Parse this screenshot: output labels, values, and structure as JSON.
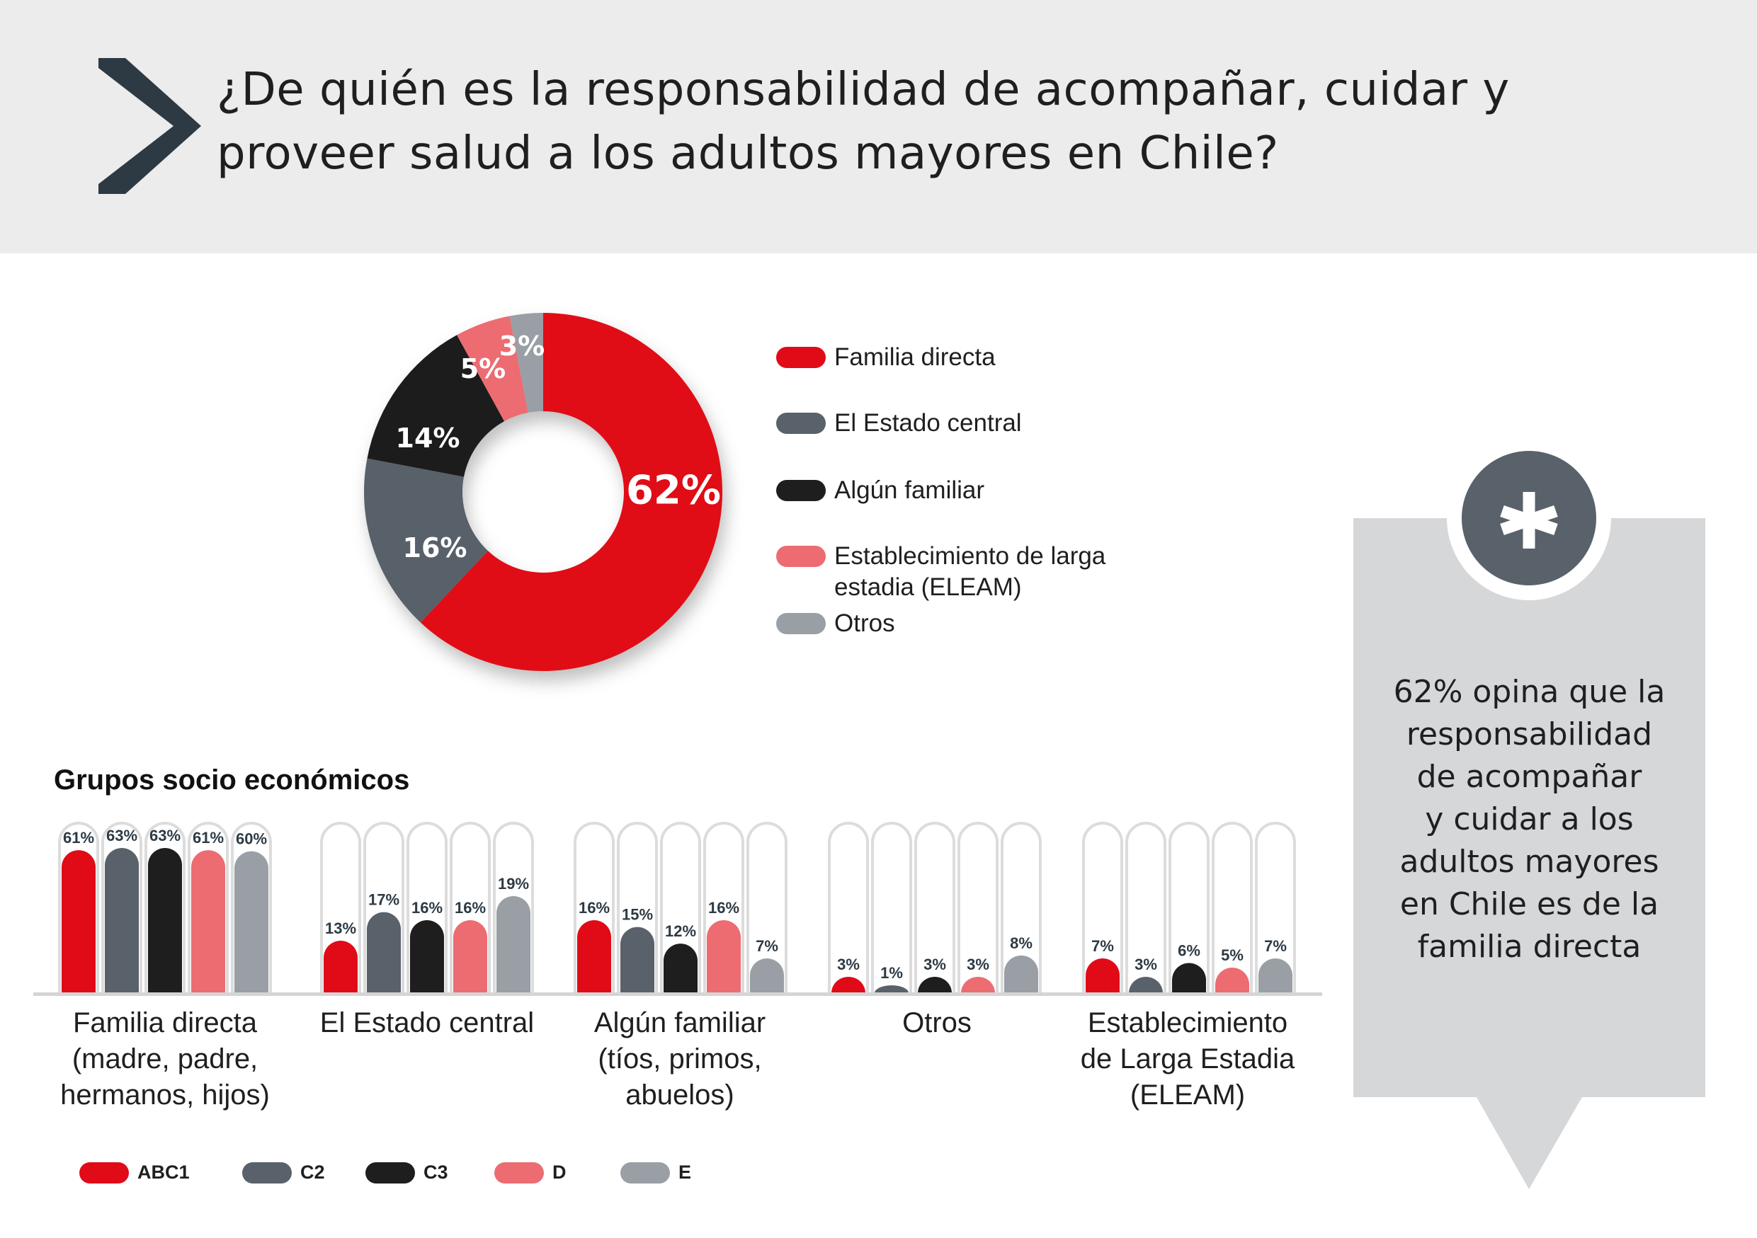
{
  "colors": {
    "ABC1": "#e00b17",
    "C2": "#59616a",
    "C3": "#1e1e1e",
    "D": "#ec6c72",
    "E": "#999fa5",
    "header_bg": "#ececec",
    "accent_dark": "#2d3a44"
  },
  "header": {
    "title_line1": "¿De quién es la responsabilidad de acompañar, cuidar y",
    "title_line2": "proveer salud a los adultos mayores en Chile?",
    "icon": "chevron-right-icon"
  },
  "chart_data": [
    {
      "type": "pie",
      "donut": true,
      "slices": [
        {
          "label": "Familia directa",
          "value": 62,
          "display": "62%",
          "color": "#e00b17"
        },
        {
          "label": "El Estado central",
          "value": 16,
          "display": "16%",
          "color": "#59616a"
        },
        {
          "label": "Algún familiar",
          "value": 14,
          "display": "14%",
          "color": "#1e1e1e"
        },
        {
          "label": "Establecimiento de larga estadia (ELEAM)",
          "value": 5,
          "display": "5%",
          "color": "#ec6c72"
        },
        {
          "label": "Otros",
          "value": 3,
          "display": "3%",
          "color": "#999fa5"
        }
      ],
      "legend": [
        {
          "line1": "Familia directa",
          "line2": "",
          "color": "#e00b17"
        },
        {
          "line1": "El Estado central",
          "line2": "",
          "color": "#59616a"
        },
        {
          "line1": "Algún familiar",
          "line2": "",
          "color": "#1e1e1e"
        },
        {
          "line1": "Establecimiento de larga",
          "line2": "estadia (ELEAM)",
          "color": "#ec6c72"
        },
        {
          "line1": "Otros",
          "line2": "",
          "color": "#999fa5"
        }
      ],
      "legend_placement": "right"
    },
    {
      "type": "bar",
      "title": "Grupos socio económicos",
      "categories": [
        [
          "Familia directa",
          "(madre, padre,",
          "hermanos, hijos)"
        ],
        [
          "El Estado central"
        ],
        [
          "Algún familiar",
          "(tíos, primos,",
          "abuelos)"
        ],
        [
          "Otros"
        ],
        [
          "Establecimiento",
          "de Larga Estadia",
          "(ELEAM)"
        ]
      ],
      "series": [
        {
          "name": "ABC1",
          "color": "#e00b17",
          "values": [
            61,
            13,
            16,
            3,
            7
          ]
        },
        {
          "name": "C2",
          "color": "#59616a",
          "values": [
            63,
            17,
            15,
            1,
            3
          ]
        },
        {
          "name": "C3",
          "color": "#1e1e1e",
          "values": [
            63,
            16,
            12,
            3,
            6
          ]
        },
        {
          "name": "D",
          "color": "#ec6c72",
          "values": [
            61,
            16,
            16,
            3,
            5
          ]
        },
        {
          "name": "E",
          "color": "#999fa5",
          "values": [
            60,
            19,
            7,
            8,
            7
          ]
        }
      ],
      "legend_placement": "bottom-left"
    }
  ],
  "callout": {
    "icon": "asterisk-icon",
    "lines": [
      "62% opina que la",
      "responsabilidad",
      "de acompañar",
      "y cuidar a los",
      "adultos mayores",
      "en Chile es de la",
      "familia directa"
    ]
  }
}
